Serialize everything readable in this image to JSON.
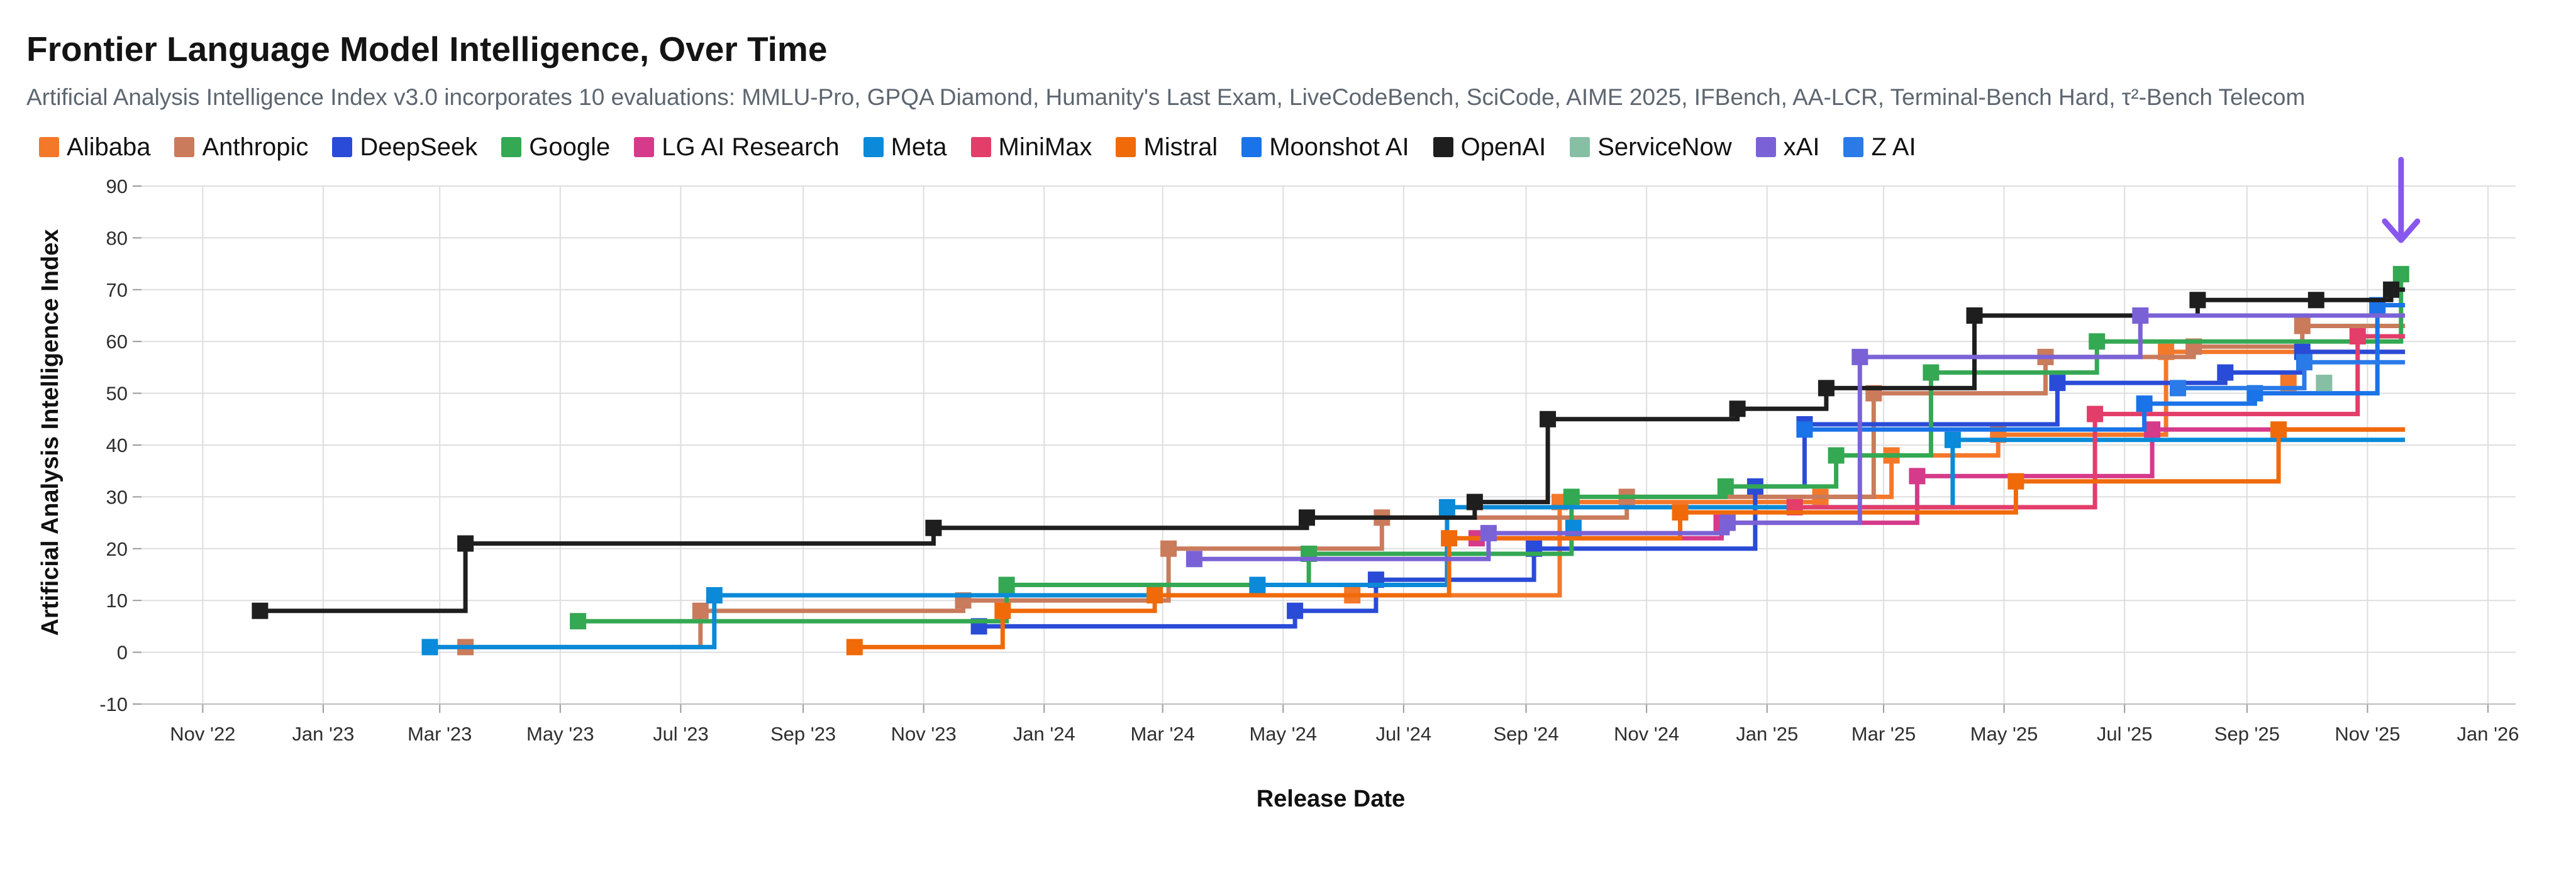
{
  "chart_data": {
    "type": "line",
    "title": "Frontier Language Model Intelligence, Over Time",
    "subtitle": "Artificial Analysis Intelligence Index v3.0 incorporates 10 evaluations: MMLU-Pro, GPQA Diamond, Humanity's Last Exam, LiveCodeBench, SciCode, AIME 2025, IFBench, AA-LCR, Terminal-Bench Hard, τ²-Bench Telecom",
    "xlabel": "Release Date",
    "ylabel": "Artificial Analysis Intelligence Index",
    "xlim": [
      "2022-10-01",
      "2026-01-15"
    ],
    "ylim": [
      -10,
      90
    ],
    "y_ticks": [
      -10,
      0,
      10,
      20,
      30,
      40,
      50,
      60,
      70,
      80,
      90
    ],
    "x_ticks": [
      {
        "date": "2022-11-01",
        "label": "Nov '22"
      },
      {
        "date": "2023-01-01",
        "label": "Jan '23"
      },
      {
        "date": "2023-03-01",
        "label": "Mar '23"
      },
      {
        "date": "2023-05-01",
        "label": "May '23"
      },
      {
        "date": "2023-07-01",
        "label": "Jul '23"
      },
      {
        "date": "2023-09-01",
        "label": "Sep '23"
      },
      {
        "date": "2023-11-01",
        "label": "Nov '23"
      },
      {
        "date": "2024-01-01",
        "label": "Jan '24"
      },
      {
        "date": "2024-03-01",
        "label": "Mar '24"
      },
      {
        "date": "2024-05-01",
        "label": "May '24"
      },
      {
        "date": "2024-07-01",
        "label": "Jul '24"
      },
      {
        "date": "2024-09-01",
        "label": "Sep '24"
      },
      {
        "date": "2024-11-01",
        "label": "Nov '24"
      },
      {
        "date": "2025-01-01",
        "label": "Jan '25"
      },
      {
        "date": "2025-03-01",
        "label": "Mar '25"
      },
      {
        "date": "2025-05-01",
        "label": "May '25"
      },
      {
        "date": "2025-07-01",
        "label": "Jul '25"
      },
      {
        "date": "2025-09-01",
        "label": "Sep '25"
      },
      {
        "date": "2025-11-01",
        "label": "Nov '25"
      },
      {
        "date": "2026-01-01",
        "label": "Jan '26"
      }
    ],
    "grid": true,
    "legend_position": "top-left",
    "step": true,
    "series_end": "2025-11-20",
    "series": [
      {
        "name": "Alibaba",
        "color": "#f4782a",
        "points": [
          {
            "x": "2024-06-05",
            "y": 11
          },
          {
            "x": "2024-09-18",
            "y": 29
          },
          {
            "x": "2025-01-28",
            "y": 30
          },
          {
            "x": "2025-03-05",
            "y": 38
          },
          {
            "x": "2025-04-28",
            "y": 42
          },
          {
            "x": "2025-07-22",
            "y": 58
          },
          {
            "x": "2025-09-22",
            "y": 52
          }
        ]
      },
      {
        "name": "Anthropic",
        "color": "#c97b5c",
        "points": [
          {
            "x": "2023-03-14",
            "y": 1
          },
          {
            "x": "2023-07-11",
            "y": 8
          },
          {
            "x": "2023-11-21",
            "y": 10
          },
          {
            "x": "2024-03-04",
            "y": 20
          },
          {
            "x": "2024-06-20",
            "y": 26
          },
          {
            "x": "2024-10-22",
            "y": 30
          },
          {
            "x": "2025-02-24",
            "y": 50
          },
          {
            "x": "2025-05-22",
            "y": 57
          },
          {
            "x": "2025-08-05",
            "y": 59
          },
          {
            "x": "2025-09-29",
            "y": 63
          }
        ]
      },
      {
        "name": "DeepSeek",
        "color": "#2a4bd7",
        "points": [
          {
            "x": "2023-11-29",
            "y": 5
          },
          {
            "x": "2024-05-07",
            "y": 8
          },
          {
            "x": "2024-06-17",
            "y": 14
          },
          {
            "x": "2024-09-05",
            "y": 20
          },
          {
            "x": "2024-12-26",
            "y": 32
          },
          {
            "x": "2025-01-20",
            "y": 44
          },
          {
            "x": "2025-05-28",
            "y": 52
          },
          {
            "x": "2025-08-21",
            "y": 54
          },
          {
            "x": "2025-09-29",
            "y": 58
          }
        ]
      },
      {
        "name": "Google",
        "color": "#34a853",
        "points": [
          {
            "x": "2023-05-10",
            "y": 6
          },
          {
            "x": "2023-12-13",
            "y": 13
          },
          {
            "x": "2024-05-14",
            "y": 19
          },
          {
            "x": "2024-09-24",
            "y": 30
          },
          {
            "x": "2024-12-11",
            "y": 32
          },
          {
            "x": "2025-02-05",
            "y": 38
          },
          {
            "x": "2025-03-25",
            "y": 54
          },
          {
            "x": "2025-06-17",
            "y": 60
          },
          {
            "x": "2025-11-18",
            "y": 73
          }
        ]
      },
      {
        "name": "LG AI Research",
        "color": "#d63a8a",
        "points": [
          {
            "x": "2024-08-07",
            "y": 22
          },
          {
            "x": "2024-12-09",
            "y": 25
          },
          {
            "x": "2025-03-18",
            "y": 34
          },
          {
            "x": "2025-07-15",
            "y": 43
          }
        ]
      },
      {
        "name": "Meta",
        "color": "#0a8ad8",
        "points": [
          {
            "x": "2023-02-24",
            "y": 1
          },
          {
            "x": "2023-07-18",
            "y": 11
          },
          {
            "x": "2024-04-18",
            "y": 13
          },
          {
            "x": "2024-07-23",
            "y": 28
          },
          {
            "x": "2024-09-25",
            "y": 24
          },
          {
            "x": "2025-04-05",
            "y": 41
          }
        ]
      },
      {
        "name": "MiniMax",
        "color": "#e33d6a",
        "points": [
          {
            "x": "2025-01-15",
            "y": 28
          },
          {
            "x": "2025-06-16",
            "y": 46
          },
          {
            "x": "2025-10-27",
            "y": 61
          }
        ]
      },
      {
        "name": "Mistral",
        "color": "#f06a0a",
        "points": [
          {
            "x": "2023-09-27",
            "y": 1
          },
          {
            "x": "2023-12-11",
            "y": 8
          },
          {
            "x": "2024-02-26",
            "y": 11
          },
          {
            "x": "2024-07-24",
            "y": 22
          },
          {
            "x": "2024-11-18",
            "y": 27
          },
          {
            "x": "2025-05-07",
            "y": 33
          },
          {
            "x": "2025-09-17",
            "y": 43
          }
        ]
      },
      {
        "name": "Moonshot AI",
        "color": "#1a73e8",
        "points": [
          {
            "x": "2025-01-20",
            "y": 43
          },
          {
            "x": "2025-07-11",
            "y": 48
          },
          {
            "x": "2025-09-05",
            "y": 50
          },
          {
            "x": "2025-11-06",
            "y": 67
          }
        ]
      },
      {
        "name": "OpenAI",
        "color": "#1e1e1e",
        "points": [
          {
            "x": "2022-11-30",
            "y": 8
          },
          {
            "x": "2023-03-14",
            "y": 21
          },
          {
            "x": "2023-11-06",
            "y": 24
          },
          {
            "x": "2024-05-13",
            "y": 26
          },
          {
            "x": "2024-08-06",
            "y": 29
          },
          {
            "x": "2024-09-12",
            "y": 45
          },
          {
            "x": "2024-12-17",
            "y": 47
          },
          {
            "x": "2025-01-31",
            "y": 51
          },
          {
            "x": "2025-04-16",
            "y": 65
          },
          {
            "x": "2025-08-07",
            "y": 68
          },
          {
            "x": "2025-10-06",
            "y": 68
          },
          {
            "x": "2025-11-13",
            "y": 70
          }
        ]
      },
      {
        "name": "ServiceNow",
        "color": "#86bfa4",
        "points": [
          {
            "x": "2025-10-10",
            "y": 52
          }
        ]
      },
      {
        "name": "xAI",
        "color": "#7a62d6",
        "points": [
          {
            "x": "2024-03-17",
            "y": 18
          },
          {
            "x": "2024-08-13",
            "y": 23
          },
          {
            "x": "2024-12-12",
            "y": 25
          },
          {
            "x": "2025-02-17",
            "y": 57
          },
          {
            "x": "2025-07-09",
            "y": 65
          }
        ]
      },
      {
        "name": "Z AI",
        "color": "#2a7ae8",
        "points": [
          {
            "x": "2025-07-28",
            "y": 51
          },
          {
            "x": "2025-09-30",
            "y": 56
          }
        ]
      }
    ],
    "annotation": {
      "type": "arrow",
      "x": "2025-11-18",
      "color": "#8757ee"
    }
  }
}
